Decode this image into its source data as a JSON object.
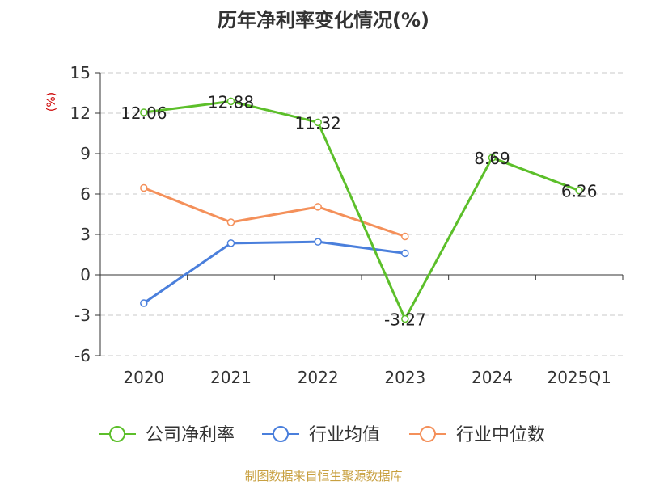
{
  "source_note": "制图数据来自恒生聚源数据库",
  "colors": {
    "text": "#333333",
    "grid": "#c8c8c8",
    "axis": "#333333",
    "ylabel": "#cc0000",
    "source": "#c8a040"
  },
  "chart_data": {
    "type": "line",
    "title": "历年净利率变化情况(%)",
    "ylabel": "(%)",
    "xlabel": "",
    "categories": [
      "2020",
      "2021",
      "2022",
      "2023",
      "2024",
      "2025Q1"
    ],
    "ylim": [
      -6,
      15
    ],
    "yticks": [
      15,
      12,
      9,
      6,
      3,
      0,
      -3,
      -6
    ],
    "grid": true,
    "legend_position": "bottom",
    "series": [
      {
        "name": "公司净利率",
        "color": "#5cbf2a",
        "values": [
          12.06,
          12.88,
          11.32,
          -3.27,
          8.69,
          6.26
        ],
        "labels": [
          "12.06",
          "12.88",
          "11.32",
          "-3.27",
          "8.69",
          "6.26"
        ]
      },
      {
        "name": "行业均值",
        "color": "#4a7fdc",
        "values": [
          -2.1,
          2.35,
          2.45,
          1.6,
          null,
          null
        ]
      },
      {
        "name": "行业中位数",
        "color": "#f4905a",
        "values": [
          6.45,
          3.9,
          5.05,
          2.85,
          null,
          null
        ]
      }
    ]
  }
}
